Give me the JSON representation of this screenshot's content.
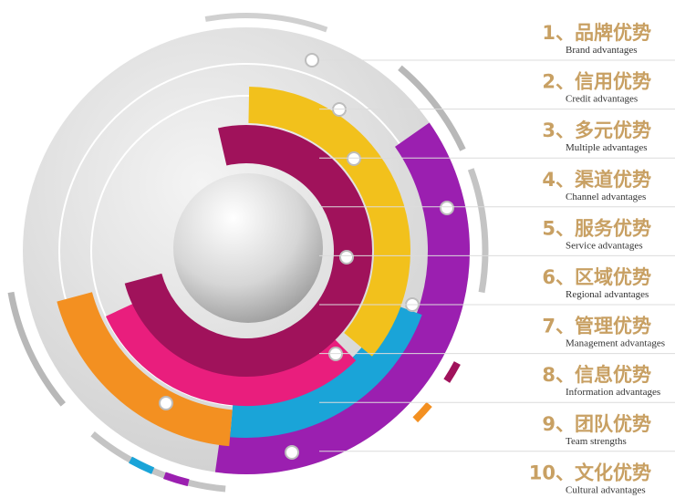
{
  "items": [
    {
      "title": "1、品牌优势",
      "subtitle": "Brand advantages"
    },
    {
      "title": "2、信用优势",
      "subtitle": "Credit advantages"
    },
    {
      "title": "3、多元优势",
      "subtitle": "Multiple advantages"
    },
    {
      "title": "4、渠道优势",
      "subtitle": "Channel advantages"
    },
    {
      "title": "5、服务优势",
      "subtitle": "Service advantages"
    },
    {
      "title": "6、区域优势",
      "subtitle": "Regional advantages"
    },
    {
      "title": "7、管理优势",
      "subtitle": "Management advantages"
    },
    {
      "title": "8、信息优势",
      "subtitle": "Information advantages"
    },
    {
      "title": "9、团队优势",
      "subtitle": "Team strengths"
    },
    {
      "title": "10、文化优势",
      "subtitle": "Cultural advantages"
    }
  ]
}
